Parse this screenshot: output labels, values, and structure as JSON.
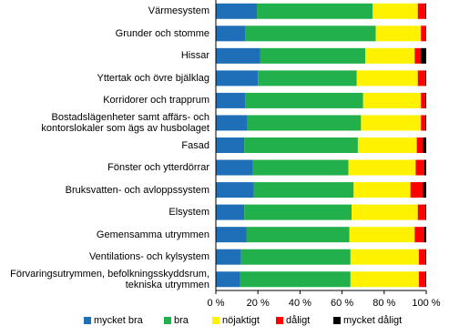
{
  "chart_data": {
    "type": "stacked-barh",
    "categories": [
      "Värmesystem",
      "Grunder och stomme",
      "Hissar",
      "Yttertak och övre bjälklag",
      "Korridorer och trapprum",
      "Bostadslägenheter samt affärs- och\nkontorslokaler som ägs av husbolaget",
      "Fasad",
      "Fönster och ytterdörrar",
      "Bruksvatten- och avloppssystem",
      "Elsystem",
      "Gemensamma utrymmen",
      "Ventilations- och kylsystem",
      "Förvaringsutrymmen, befolkningsskyddsrum,\ntekniska utrymmen"
    ],
    "series": [
      {
        "name": "mycket bra",
        "color": "#1f6fb8",
        "values": [
          19.5,
          14,
          21,
          20,
          14,
          15,
          13.5,
          17.5,
          18,
          13.5,
          14.5,
          12,
          11.5
        ]
      },
      {
        "name": "bra",
        "color": "#21b04b",
        "values": [
          55,
          62,
          50,
          47,
          56,
          54,
          54,
          45.5,
          47.5,
          51,
          49,
          52,
          52.5
        ]
      },
      {
        "name": "nöjaktigt",
        "color": "#fff200",
        "values": [
          21.5,
          21.5,
          23.5,
          29,
          27.5,
          28.5,
          28,
          32,
          27,
          31.5,
          31,
          32.5,
          32.5
        ]
      },
      {
        "name": "dåligt",
        "color": "#ff0000",
        "values": [
          3.5,
          2.5,
          3,
          3.5,
          2,
          2,
          3,
          4,
          6,
          3.5,
          4.5,
          3,
          3
        ]
      },
      {
        "name": "mycket dåligt",
        "color": "#000000",
        "values": [
          0.5,
          0,
          2.5,
          0.5,
          0.5,
          0.5,
          1.5,
          1,
          1.5,
          0.5,
          1,
          0.5,
          0.5
        ]
      }
    ],
    "xlim": [
      0,
      100
    ],
    "xticks": [
      {
        "value": 0,
        "label": "0 %"
      },
      {
        "value": 20,
        "label": "20 %"
      },
      {
        "value": 40,
        "label": "40 %"
      },
      {
        "value": 60,
        "label": "60 %"
      },
      {
        "value": 80,
        "label": "80 %"
      },
      {
        "value": 100,
        "label": "100 %"
      }
    ],
    "grid": false,
    "legend": "bottom"
  }
}
